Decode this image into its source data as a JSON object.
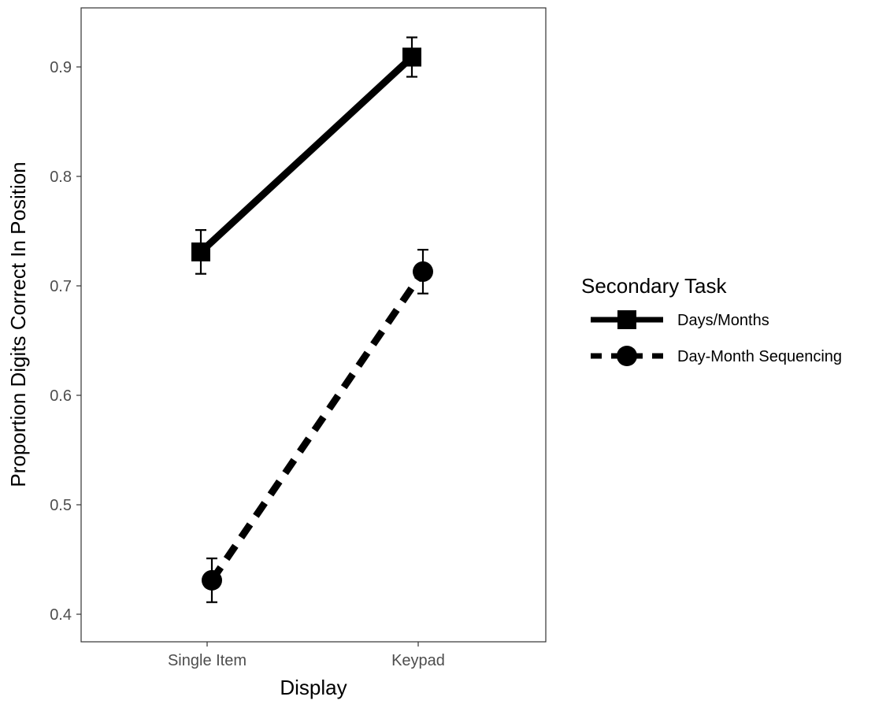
{
  "chart_data": {
    "type": "line",
    "title": "",
    "xlabel": "Display",
    "ylabel": "Proportion Digits Correct In Position",
    "categories": [
      "Single Item",
      "Keypad"
    ],
    "ylim": [
      0.38,
      0.95
    ],
    "yticks": [
      0.4,
      0.5,
      0.6,
      0.7,
      0.8,
      0.9
    ],
    "ytick_labels": [
      "0.4",
      "0.5",
      "0.6",
      "0.7",
      "0.8",
      "0.9"
    ],
    "grid": false,
    "legend": {
      "title": "Secondary Task",
      "position": "right"
    },
    "series": [
      {
        "name": "Days/Months",
        "values": [
          0.731,
          0.909
        ],
        "error_low": [
          0.711,
          0.891
        ],
        "error_high": [
          0.751,
          0.927
        ],
        "line_style": "solid",
        "marker": "square",
        "color": "#000000"
      },
      {
        "name": "Day-Month Sequencing",
        "values": [
          0.431,
          0.713
        ],
        "error_low": [
          0.411,
          0.693
        ],
        "error_high": [
          0.451,
          0.733
        ],
        "line_style": "dashed",
        "marker": "circle",
        "color": "#000000"
      }
    ]
  }
}
